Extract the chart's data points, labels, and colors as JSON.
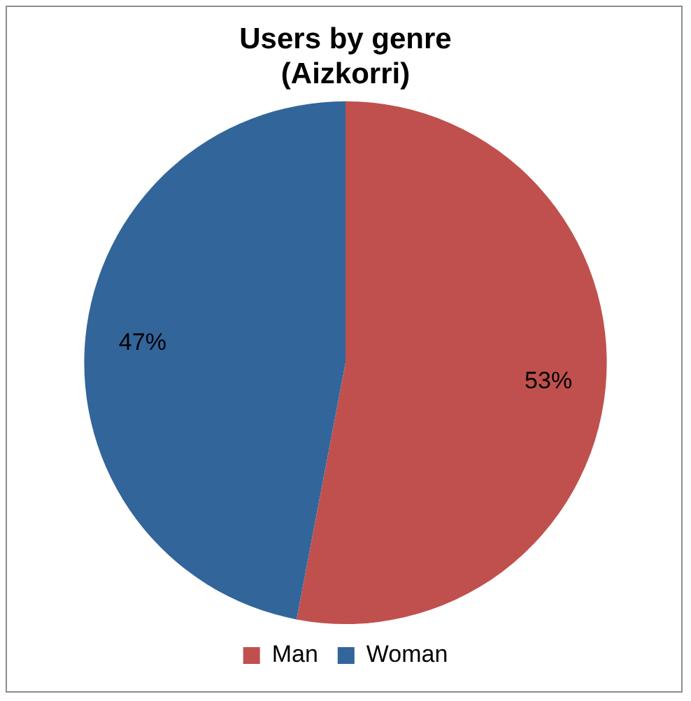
{
  "chart_data": {
    "type": "pie",
    "title": "Users by genre\n(Aizkorri)",
    "categories": [
      "Man",
      "Woman"
    ],
    "values": [
      53,
      47
    ],
    "colors": [
      "#c0504d",
      "#32659a"
    ],
    "value_labels": [
      "53%",
      "47%"
    ],
    "legend": "bottom"
  }
}
